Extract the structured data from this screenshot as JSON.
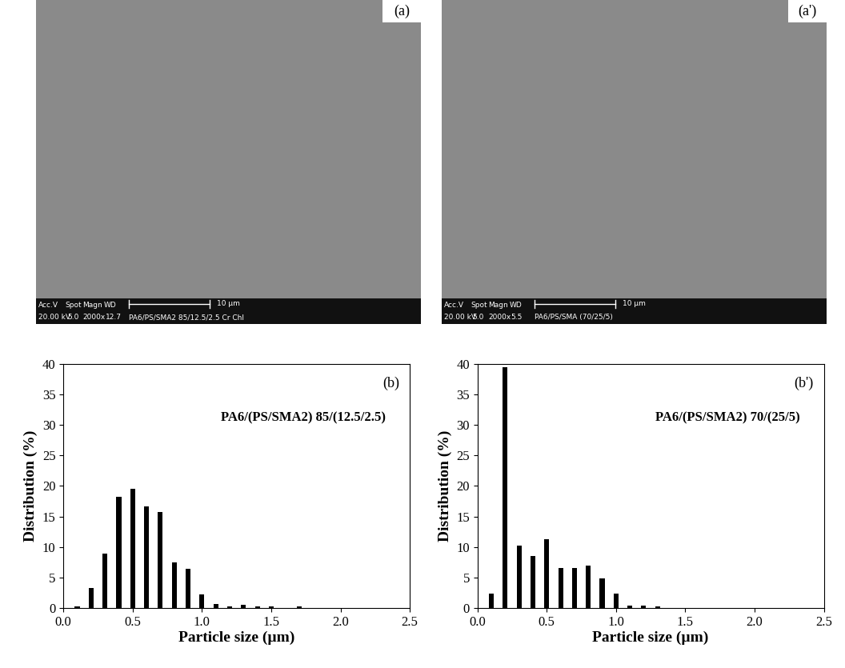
{
  "images": [
    {
      "panel": "(a)",
      "info_header": [
        "Acc.V",
        "Spot",
        "Magn",
        "WD"
      ],
      "info_values": [
        "20.00 kV",
        "5.0",
        "2000x",
        "12.7",
        "PA6/PS/SMA2 85/12.5/2.5 Cr Chl"
      ],
      "scale_bar": "10 µm"
    },
    {
      "panel": "(a')",
      "info_header": [
        "Acc.V",
        "Spot",
        "Magn",
        "WD"
      ],
      "info_values": [
        "20.00 kV",
        "5.0",
        "2000x",
        "5.5",
        "PA6/PS/SMA (70/25/5)"
      ],
      "scale_bar": "10 µm"
    }
  ],
  "chart_data": [
    {
      "type": "bar",
      "panel": "(b)",
      "annotation": "PA6/(PS/SMA2) 85/(12.5/2.5)",
      "x_label": "Particle size (µm)",
      "y_label": "Distribution (%)",
      "x": [
        0.1,
        0.2,
        0.3,
        0.4,
        0.5,
        0.6,
        0.7,
        0.8,
        0.9,
        1.0,
        1.1,
        1.2,
        1.3,
        1.4,
        1.5,
        1.6,
        1.7
      ],
      "values": [
        0.2,
        3.3,
        8.9,
        18.2,
        19.6,
        16.7,
        15.7,
        7.5,
        6.4,
        2.2,
        0.6,
        0.3,
        0.5,
        0.2,
        0.2,
        0.0,
        0.2
      ],
      "color": "#000000",
      "xlim": [
        0,
        2.5
      ],
      "xticks": [
        0.0,
        0.5,
        1.0,
        1.5,
        2.0,
        2.5
      ],
      "ylim": [
        0,
        40
      ],
      "yticks": [
        0,
        5,
        10,
        15,
        20,
        25,
        30,
        35,
        40
      ]
    },
    {
      "type": "bar",
      "panel": "(b')",
      "annotation": "PA6/(PS/SMA2) 70/(25/5)",
      "x_label": "Particle size (µm)",
      "y_label": "Distribution (%)",
      "x": [
        0.1,
        0.2,
        0.3,
        0.4,
        0.5,
        0.6,
        0.7,
        0.8,
        0.9,
        1.0,
        1.1,
        1.2,
        1.3
      ],
      "values": [
        2.4,
        39.5,
        10.2,
        8.5,
        11.3,
        6.5,
        6.5,
        6.9,
        4.9,
        2.4,
        0.4,
        0.4,
        0.3
      ],
      "color": "#000000",
      "xlim": [
        0,
        2.5
      ],
      "xticks": [
        0.0,
        0.5,
        1.0,
        1.5,
        2.0,
        2.5
      ],
      "ylim": [
        0,
        40
      ],
      "yticks": [
        0,
        5,
        10,
        15,
        20,
        25,
        30,
        35,
        40
      ]
    }
  ]
}
